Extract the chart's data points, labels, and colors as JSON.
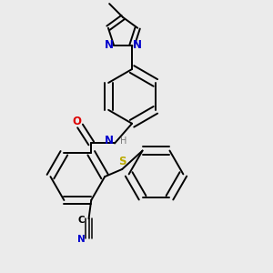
{
  "bg_color": "#ebebeb",
  "bond_color": "#000000",
  "bond_lw": 1.4,
  "atom_colors": {
    "N": "#0000cc",
    "O": "#dd0000",
    "S": "#bbaa00",
    "H": "#777777",
    "C": "#000000"
  },
  "font_size": 8.5,
  "fig_size": [
    3.0,
    3.0
  ],
  "dpi": 100
}
